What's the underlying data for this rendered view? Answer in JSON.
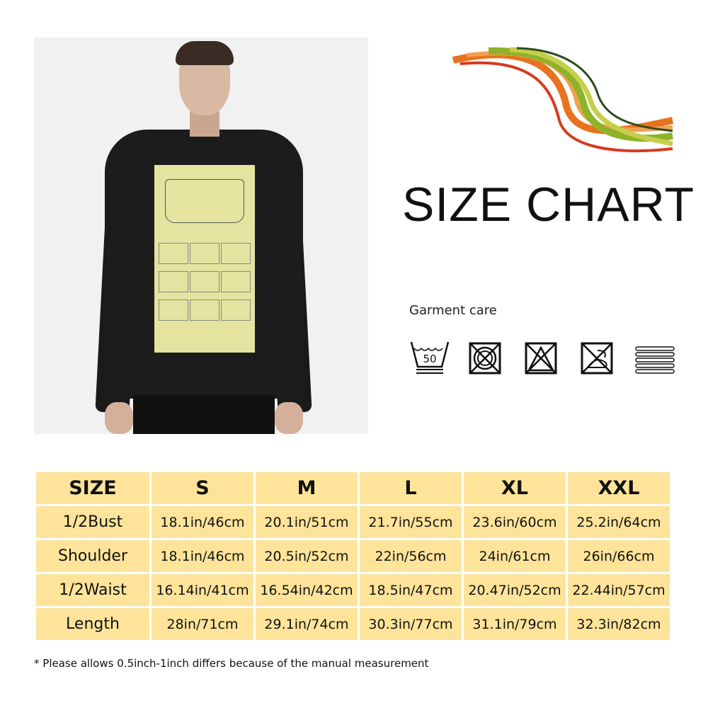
{
  "title": "SIZE CHART",
  "garment_care": {
    "label": "Garment care",
    "icons": [
      "wash-50-icon",
      "do-not-tumble-dry-icon",
      "do-not-bleach-icon",
      "do-not-dry-clean-icon",
      "flat-dry-icon"
    ],
    "wash_temp": "50"
  },
  "table": {
    "headers": [
      "SIZE",
      "S",
      "M",
      "L",
      "XL",
      "XXL"
    ],
    "rows": [
      [
        "1/2Bust",
        "18.1in/46cm",
        "20.1in/51cm",
        "21.7in/55cm",
        "23.6in/60cm",
        "25.2in/64cm"
      ],
      [
        "Shoulder",
        "18.1in/46cm",
        "20.5in/52cm",
        "22in/56cm",
        "24in/61cm",
        "26in/66cm"
      ],
      [
        "1/2Waist",
        "16.14in/41cm",
        "16.54in/42cm",
        "18.5in/47cm",
        "20.47in/52cm",
        "22.44in/57cm"
      ],
      [
        "Length",
        "28in/71cm",
        "29.1in/74cm",
        "30.3in/77cm",
        "31.1in/79cm",
        "32.3in/82cm"
      ]
    ]
  },
  "note": "* Please allows 0.5inch-1inch differs because of the manual measurement",
  "colors": {
    "cell": "#fde49a",
    "shirt": "#1c1c1c",
    "print": "#e4e3a0"
  }
}
